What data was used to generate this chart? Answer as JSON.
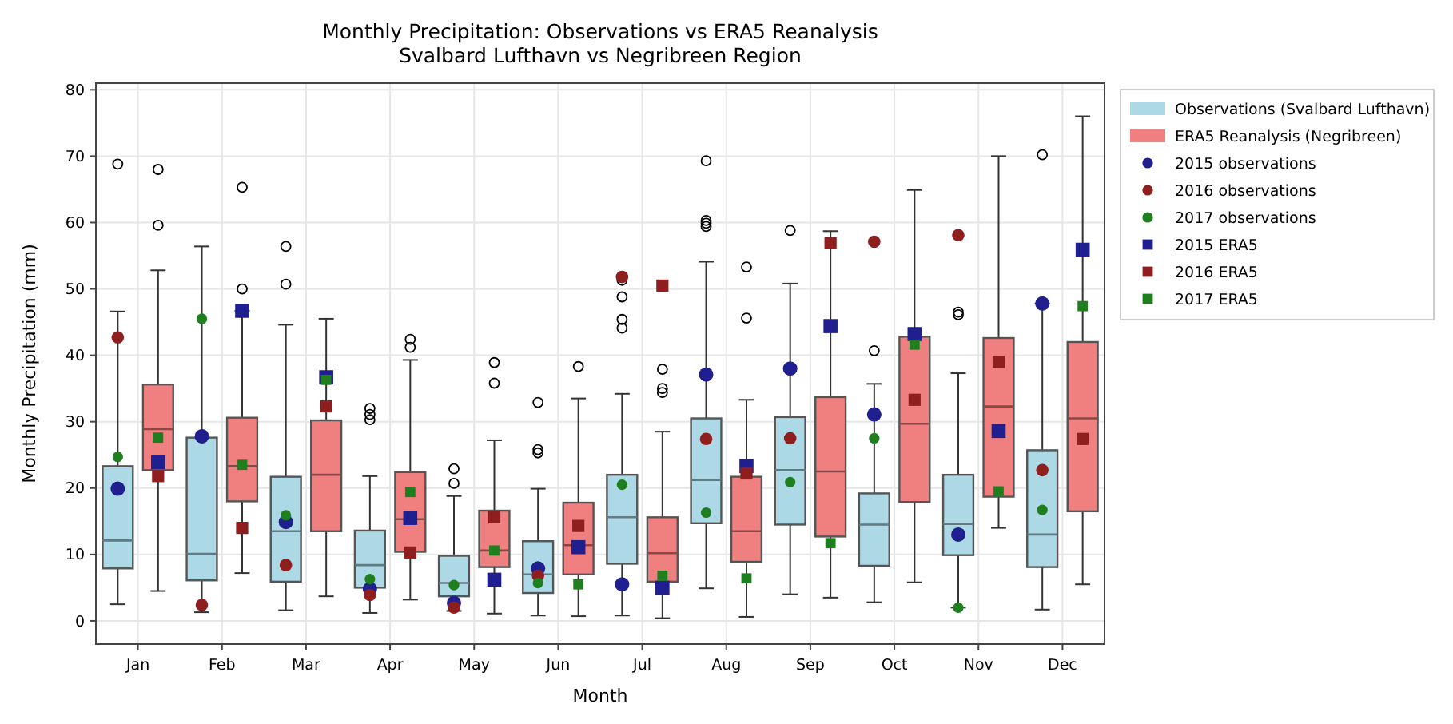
{
  "chart_data": {
    "type": "box",
    "title": "Monthly Precipitation: Observations vs ERA5 Reanalysis",
    "subtitle": "Svalbard Lufthavn vs Negribreen Region",
    "xlabel": "Month",
    "ylabel": "Monthly Precipitation (mm)",
    "categories": [
      "Jan",
      "Feb",
      "Mar",
      "Apr",
      "May",
      "Jun",
      "Jul",
      "Aug",
      "Sep",
      "Oct",
      "Nov",
      "Dec"
    ],
    "ylim": [
      -3.5,
      81
    ],
    "yticks": [
      0,
      10,
      20,
      30,
      40,
      50,
      60,
      70,
      80
    ],
    "grid": true,
    "legend": "right",
    "series": [
      {
        "name": "Observations (Svalbard Lufthavn)",
        "color": "#add8e6",
        "boxes": [
          {
            "low": 2.5,
            "q1": 7.9,
            "median": 12.1,
            "q3": 23.3,
            "high": 46.6,
            "outliers": [
              68.8
            ]
          },
          {
            "low": 1.3,
            "q1": 6.1,
            "median": 10.1,
            "q3": 27.6,
            "high": 56.4
          },
          {
            "low": 1.6,
            "q1": 5.9,
            "median": 13.5,
            "q3": 21.7,
            "high": 44.6,
            "outliers": [
              50.7,
              56.4
            ]
          },
          {
            "low": 1.2,
            "q1": 5.0,
            "median": 8.4,
            "q3": 13.6,
            "high": 21.8,
            "outliers": [
              30.3,
              31.1,
              32.0
            ]
          },
          {
            "low": 1.5,
            "q1": 3.7,
            "median": 5.7,
            "q3": 9.8,
            "high": 18.8,
            "outliers": [
              20.7,
              22.9
            ]
          },
          {
            "low": 0.8,
            "q1": 4.2,
            "median": 7.0,
            "q3": 12.0,
            "high": 19.9,
            "outliers": [
              25.3,
              25.8,
              32.9
            ]
          },
          {
            "low": 0.8,
            "q1": 8.6,
            "median": 15.6,
            "q3": 22.0,
            "high": 34.2,
            "outliers": [
              44.1,
              45.4,
              48.8,
              51.3
            ]
          },
          {
            "low": 4.9,
            "q1": 14.7,
            "median": 21.2,
            "q3": 30.5,
            "high": 54.1,
            "outliers": [
              59.4,
              59.9,
              60.3,
              69.3
            ]
          },
          {
            "low": 4.0,
            "q1": 14.5,
            "median": 22.7,
            "q3": 30.7,
            "high": 50.8,
            "outliers": [
              58.8
            ]
          },
          {
            "low": 2.8,
            "q1": 8.3,
            "median": 14.5,
            "q3": 19.2,
            "high": 35.7,
            "outliers": [
              40.7
            ]
          },
          {
            "low": 2.0,
            "q1": 9.9,
            "median": 14.6,
            "q3": 22.0,
            "high": 37.3,
            "outliers": [
              46.1,
              46.5
            ]
          },
          {
            "low": 1.7,
            "q1": 8.1,
            "median": 13.0,
            "q3": 25.7,
            "high": 47.8,
            "outliers": [
              70.2
            ]
          }
        ]
      },
      {
        "name": "ERA5 Reanalysis (Negribreen)",
        "color": "#f08080",
        "boxes": [
          {
            "low": 4.5,
            "q1": 22.7,
            "median": 28.9,
            "q3": 35.6,
            "high": 52.8,
            "outliers": [
              59.6,
              68.0
            ]
          },
          {
            "low": 7.2,
            "q1": 18.0,
            "median": 23.3,
            "q3": 30.6,
            "high": 46.7,
            "outliers": [
              50.0,
              65.3
            ]
          },
          {
            "low": 3.7,
            "q1": 13.5,
            "median": 22.0,
            "q3": 30.2,
            "high": 45.5
          },
          {
            "low": 3.2,
            "q1": 10.4,
            "median": 15.3,
            "q3": 22.4,
            "high": 39.3,
            "outliers": [
              41.2,
              42.4
            ]
          },
          {
            "low": 1.1,
            "q1": 8.1,
            "median": 10.6,
            "q3": 16.6,
            "high": 27.2,
            "outliers": [
              35.8,
              38.9
            ]
          },
          {
            "low": 0.7,
            "q1": 7.0,
            "median": 11.4,
            "q3": 17.8,
            "high": 33.5,
            "outliers": [
              38.3
            ]
          },
          {
            "low": 0.4,
            "q1": 5.9,
            "median": 10.2,
            "q3": 15.6,
            "high": 28.5,
            "outliers": [
              34.4,
              35.0,
              37.9
            ]
          },
          {
            "low": 0.6,
            "q1": 8.9,
            "median": 13.5,
            "q3": 21.7,
            "high": 33.3,
            "outliers": [
              45.6,
              53.3
            ]
          },
          {
            "low": 3.5,
            "q1": 12.7,
            "median": 22.5,
            "q3": 33.7,
            "high": 58.7
          },
          {
            "low": 5.8,
            "q1": 17.9,
            "median": 29.7,
            "q3": 42.8,
            "high": 64.9
          },
          {
            "low": 14.0,
            "q1": 18.7,
            "median": 32.3,
            "q3": 42.6,
            "high": 70.0
          },
          {
            "low": 5.5,
            "q1": 16.5,
            "median": 30.5,
            "q3": 42.0,
            "high": 76.0
          }
        ]
      },
      {
        "name": "2015 observations",
        "type": "scatter",
        "marker": "circle",
        "color": "#1f1f8f",
        "x": [
          "Jan",
          "Feb",
          "Mar",
          "Apr",
          "May",
          "Jun",
          "Jul",
          "Aug",
          "Sep",
          "Oct",
          "Nov",
          "Dec"
        ],
        "values": [
          19.9,
          27.8,
          14.9,
          4.8,
          2.7,
          7.9,
          5.5,
          37.1,
          38.0,
          31.1,
          13.0,
          47.8
        ]
      },
      {
        "name": "2016 observations",
        "type": "scatter",
        "marker": "circle",
        "color": "#8f1f1f",
        "x": [
          "Jan",
          "Feb",
          "Mar",
          "Apr",
          "May",
          "Jun",
          "Jul",
          "Aug",
          "Sep",
          "Oct",
          "Nov",
          "Dec"
        ],
        "values": [
          42.7,
          2.4,
          8.4,
          3.9,
          2.0,
          6.8,
          51.8,
          27.4,
          27.5,
          57.1,
          58.1,
          22.7
        ]
      },
      {
        "name": "2017 observations",
        "type": "scatter",
        "marker": "circle",
        "color": "#1f7f1f",
        "x": [
          "Jan",
          "Feb",
          "Mar",
          "Apr",
          "May",
          "Jun",
          "Jul",
          "Aug",
          "Sep",
          "Oct",
          "Nov",
          "Dec"
        ],
        "values": [
          24.7,
          45.5,
          15.9,
          6.3,
          5.4,
          5.7,
          20.5,
          16.3,
          20.9,
          27.5,
          2.0,
          16.7
        ]
      },
      {
        "name": "2015 ERA5",
        "type": "scatter",
        "marker": "square",
        "color": "#1f1f8f",
        "x": [
          "Jan",
          "Feb",
          "Mar",
          "Apr",
          "May",
          "Jun",
          "Jul",
          "Aug",
          "Sep",
          "Oct",
          "Nov",
          "Dec"
        ],
        "values": [
          23.9,
          46.7,
          36.7,
          15.5,
          6.2,
          11.1,
          5.0,
          23.3,
          44.4,
          43.2,
          28.6,
          55.9
        ]
      },
      {
        "name": "2016 ERA5",
        "type": "scatter",
        "marker": "square",
        "color": "#8f1f1f",
        "x": [
          "Jan",
          "Feb",
          "Mar",
          "Apr",
          "May",
          "Jun",
          "Jul",
          "Aug",
          "Sep",
          "Oct",
          "Nov",
          "Dec"
        ],
        "values": [
          21.8,
          14.0,
          32.3,
          10.3,
          15.6,
          14.3,
          50.5,
          22.2,
          56.9,
          33.3,
          39.0,
          27.4
        ]
      },
      {
        "name": "2017 ERA5",
        "type": "scatter",
        "marker": "square",
        "color": "#1f7f1f",
        "x": [
          "Jan",
          "Feb",
          "Mar",
          "Apr",
          "May",
          "Jun",
          "Jul",
          "Aug",
          "Sep",
          "Oct",
          "Nov",
          "Dec"
        ],
        "values": [
          27.6,
          23.5,
          36.3,
          19.4,
          10.6,
          5.5,
          6.8,
          6.4,
          11.7,
          41.6,
          19.5,
          47.4
        ]
      }
    ]
  }
}
